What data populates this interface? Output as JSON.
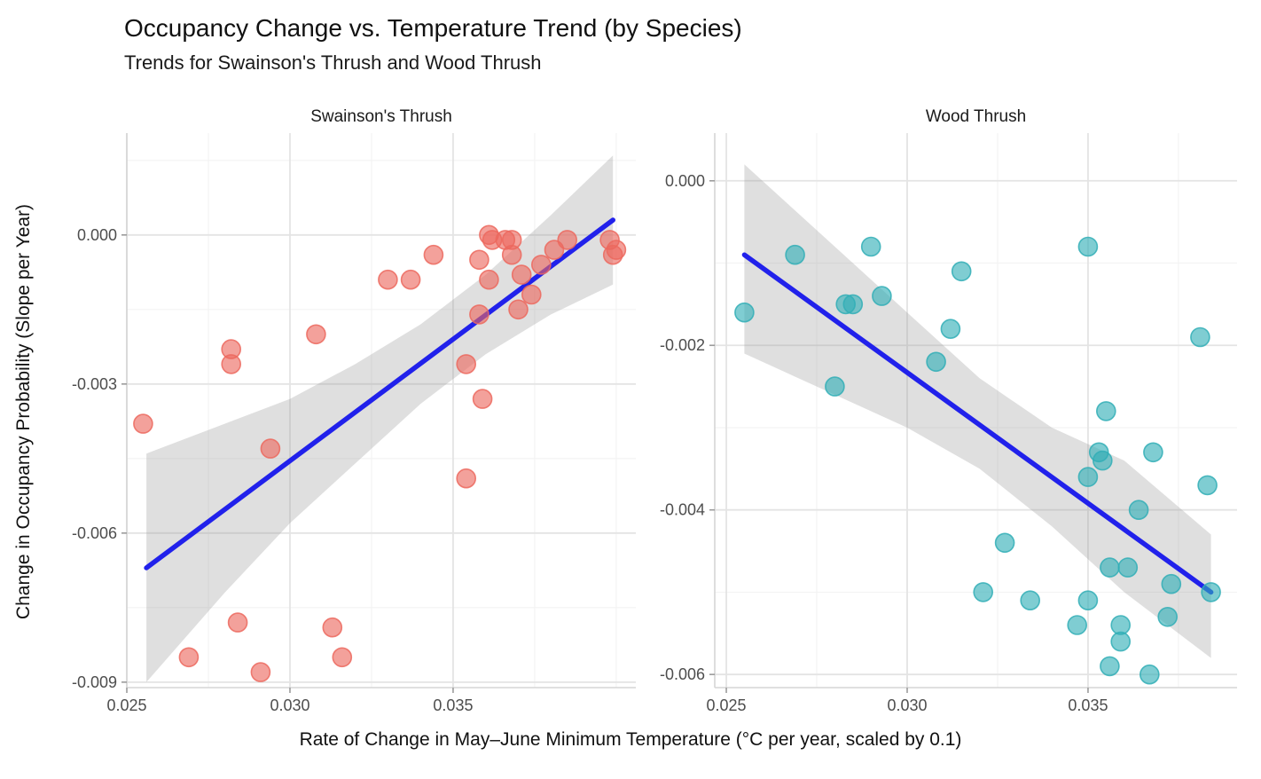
{
  "title": "Occupancy Change vs. Temperature Trend (by Species)",
  "subtitle": "Trends for Swainson's Thrush and Wood Thrush",
  "axis": {
    "x_label": "Rate of Change in May–June Minimum Temperature (°C per year, scaled by 0.1)",
    "y_label": "Change in Occupancy Probability (Slope per Year)"
  },
  "colors": {
    "trend_line": "#2121EB",
    "ci_band": "#969696",
    "panel1_points": "#EC685E",
    "panel2_points": "#31AEB6",
    "grid_major": "#E4E4E4",
    "grid_minor": "#F3F3F3",
    "tick_text": "#4D4D4D",
    "axis_line": "#D6D6D6",
    "tick_mark": "#9B9B9B",
    "facet_text": "#1A1A1A"
  },
  "chart_data": [
    {
      "type": "scatter",
      "facet_label": "Swainson's Thrush",
      "xlabel": "Rate of Change in May–June Minimum Temperature (°C per year, scaled by 0.1)",
      "ylabel": "Change in Occupancy Probability (Slope per Year)",
      "xlim": [
        0.025,
        0.0406
      ],
      "ylim": [
        0.00205,
        -0.00911
      ],
      "x_ticks": {
        "values": [
          0.025,
          0.03,
          0.035
        ],
        "labels": [
          "0.025",
          "0.030",
          "0.035"
        ],
        "minor": [
          0.0275,
          0.0325,
          0.0375,
          0.04
        ]
      },
      "y_ticks": {
        "values": [
          0,
          -0.003,
          -0.006,
          -0.009
        ],
        "labels": [
          "0.000",
          "-0.003",
          "-0.006",
          "-0.009"
        ],
        "minor": [
          0.0015,
          -0.0015,
          -0.0045,
          -0.0075
        ]
      },
      "points": [
        [
          0.0255,
          -0.0038
        ],
        [
          0.0269,
          -0.0085
        ],
        [
          0.0282,
          -0.0023
        ],
        [
          0.0282,
          -0.0026
        ],
        [
          0.0284,
          -0.0078
        ],
        [
          0.0291,
          -0.0088
        ],
        [
          0.0294,
          -0.0043
        ],
        [
          0.0308,
          -0.002
        ],
        [
          0.0313,
          -0.0079
        ],
        [
          0.0316,
          -0.0085
        ],
        [
          0.033,
          -0.0009
        ],
        [
          0.0337,
          -0.0009
        ],
        [
          0.0344,
          -0.0004
        ],
        [
          0.0354,
          -0.0026
        ],
        [
          0.0354,
          -0.0049
        ],
        [
          0.0358,
          -0.0005
        ],
        [
          0.0358,
          -0.0016
        ],
        [
          0.0359,
          -0.0033
        ],
        [
          0.0361,
          0.0
        ],
        [
          0.0361,
          -0.0009
        ],
        [
          0.0362,
          -0.0001
        ],
        [
          0.0366,
          -0.0001
        ],
        [
          0.0368,
          -0.0001
        ],
        [
          0.0368,
          -0.0004
        ],
        [
          0.037,
          -0.0015
        ],
        [
          0.0371,
          -0.0008
        ],
        [
          0.0374,
          -0.0012
        ],
        [
          0.0377,
          -0.0006
        ],
        [
          0.0381,
          -0.0003
        ],
        [
          0.0385,
          -0.0001
        ],
        [
          0.0398,
          -0.0001
        ],
        [
          0.04,
          -0.0003
        ],
        [
          0.0399,
          -0.0004
        ]
      ],
      "trend": [
        [
          0.0256,
          -0.0067
        ],
        [
          0.0399,
          0.0003
        ]
      ],
      "band_top": [
        [
          0.0256,
          -0.0044
        ],
        [
          0.028,
          -0.0038
        ],
        [
          0.03,
          -0.0033
        ],
        [
          0.032,
          -0.0026
        ],
        [
          0.034,
          -0.0018
        ],
        [
          0.036,
          -0.0008
        ],
        [
          0.038,
          0.0004
        ],
        [
          0.0399,
          0.0016
        ]
      ],
      "band_bottom": [
        [
          0.0399,
          -0.001
        ],
        [
          0.038,
          -0.0016
        ],
        [
          0.036,
          -0.0024
        ],
        [
          0.034,
          -0.0034
        ],
        [
          0.032,
          -0.0046
        ],
        [
          0.03,
          -0.0058
        ],
        [
          0.028,
          -0.0072
        ],
        [
          0.0256,
          -0.009
        ]
      ]
    },
    {
      "type": "scatter",
      "facet_label": "Wood Thrush",
      "xlabel": "Rate of Change in May–June Minimum Temperature (°C per year, scaled by 0.1)",
      "ylabel": "Change in Occupancy Probability (Slope per Year)",
      "xlim": [
        0.02468,
        0.03912
      ],
      "ylim": [
        0.00058,
        -0.00616
      ],
      "x_ticks": {
        "values": [
          0.025,
          0.03,
          0.035
        ],
        "labels": [
          "0.025",
          "0.030",
          "0.035"
        ],
        "minor": [
          0.0275,
          0.0325,
          0.0375
        ]
      },
      "y_ticks": {
        "values": [
          0,
          -0.002,
          -0.004,
          -0.006
        ],
        "labels": [
          "0.000",
          "-0.002",
          "-0.004",
          "-0.006"
        ],
        "minor": [
          -0.001,
          -0.003,
          -0.005
        ]
      },
      "points": [
        [
          0.0255,
          -0.0016
        ],
        [
          0.0269,
          -0.0009
        ],
        [
          0.028,
          -0.0025
        ],
        [
          0.0283,
          -0.0015
        ],
        [
          0.0285,
          -0.0015
        ],
        [
          0.029,
          -0.0008
        ],
        [
          0.0293,
          -0.0014
        ],
        [
          0.0308,
          -0.0022
        ],
        [
          0.0312,
          -0.0018
        ],
        [
          0.0315,
          -0.0011
        ],
        [
          0.0321,
          -0.005
        ],
        [
          0.0327,
          -0.0044
        ],
        [
          0.0334,
          -0.0051
        ],
        [
          0.0347,
          -0.0054
        ],
        [
          0.035,
          -0.0008
        ],
        [
          0.035,
          -0.0036
        ],
        [
          0.035,
          -0.0051
        ],
        [
          0.0353,
          -0.0033
        ],
        [
          0.0354,
          -0.0034
        ],
        [
          0.0355,
          -0.0028
        ],
        [
          0.0356,
          -0.0047
        ],
        [
          0.0356,
          -0.0059
        ],
        [
          0.0359,
          -0.0054
        ],
        [
          0.0359,
          -0.0056
        ],
        [
          0.0361,
          -0.0047
        ],
        [
          0.0364,
          -0.004
        ],
        [
          0.0367,
          -0.006
        ],
        [
          0.0368,
          -0.0033
        ],
        [
          0.0372,
          -0.0053
        ],
        [
          0.0373,
          -0.0049
        ],
        [
          0.0381,
          -0.0019
        ],
        [
          0.0383,
          -0.0037
        ],
        [
          0.0384,
          -0.005
        ]
      ],
      "trend": [
        [
          0.0255,
          -0.0009
        ],
        [
          0.0384,
          -0.005
        ]
      ],
      "band_top": [
        [
          0.0255,
          0.0002
        ],
        [
          0.028,
          -0.0008
        ],
        [
          0.03,
          -0.0016
        ],
        [
          0.032,
          -0.0024
        ],
        [
          0.034,
          -0.003
        ],
        [
          0.036,
          -0.0034
        ],
        [
          0.0384,
          -0.0043
        ]
      ],
      "band_bottom": [
        [
          0.0384,
          -0.0058
        ],
        [
          0.036,
          -0.005
        ],
        [
          0.034,
          -0.0042
        ],
        [
          0.032,
          -0.0035
        ],
        [
          0.03,
          -0.003
        ],
        [
          0.028,
          -0.0026
        ],
        [
          0.0255,
          -0.0021
        ]
      ]
    }
  ]
}
